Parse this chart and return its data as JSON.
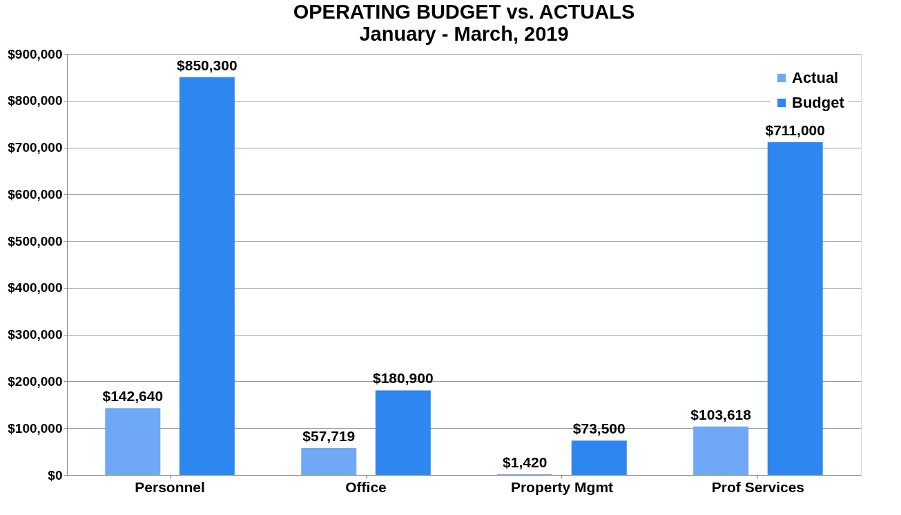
{
  "chart_data": {
    "type": "bar",
    "title": "OPERATING BUDGET vs. ACTUALS",
    "subtitle": "January - March, 2019",
    "categories": [
      "Personnel",
      "Office",
      "Property Mgmt",
      "Prof Services"
    ],
    "series": [
      {
        "name": "Actual",
        "color": "#6fa8f5",
        "values": [
          142640,
          57719,
          1420,
          103618
        ],
        "value_labels": [
          "$142,640",
          "$57,719",
          "$1,420",
          "$103,618"
        ]
      },
      {
        "name": "Budget",
        "color": "#2e86f0",
        "values": [
          850300,
          180900,
          73500,
          711000
        ],
        "value_labels": [
          "$850,300",
          "$180,900",
          "$73,500",
          "$711,000"
        ]
      }
    ],
    "ylim": [
      0,
      900000
    ],
    "yticks": [
      {
        "value": 0,
        "label": "$0"
      },
      {
        "value": 100000,
        "label": "$100,000"
      },
      {
        "value": 200000,
        "label": "$200,000"
      },
      {
        "value": 300000,
        "label": "$300,000"
      },
      {
        "value": 400000,
        "label": "$400,000"
      },
      {
        "value": 500000,
        "label": "$500,000"
      },
      {
        "value": 600000,
        "label": "$600,000"
      },
      {
        "value": 700000,
        "label": "$700,000"
      },
      {
        "value": 800000,
        "label": "$800,000"
      },
      {
        "value": 900000,
        "label": "$900,000"
      }
    ],
    "grid": "y",
    "legend": "top right"
  }
}
